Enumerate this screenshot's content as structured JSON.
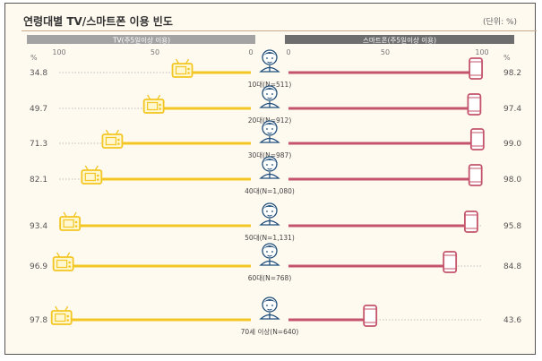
{
  "header": {
    "title": "연령대별 TV/스마트폰 이용 빈도",
    "unit": "(단위: %)"
  },
  "colors": {
    "tv": "#f3c623",
    "smartphone": "#c4546b",
    "tv_header": "#a3a3a3",
    "phone_header": "#6e6e6e",
    "dotted": "#bfbfbf"
  },
  "chart_data": {
    "type": "bar",
    "subtype": "butterfly",
    "categories": [
      "10대(N=511)",
      "20대(N=912)",
      "30대(N=987)",
      "40대(N=1,080)",
      "50대(N=1,131)",
      "60대(N=768)",
      "70세 이상(N=640)"
    ],
    "series": [
      {
        "name": "TV(주5일이상 이용)",
        "side": "left",
        "color": "#f3c623",
        "values": [
          34.8,
          49.7,
          71.3,
          82.1,
          93.4,
          96.9,
          97.8
        ],
        "value_labels": [
          "34.8",
          "49.7",
          "71.3",
          "82.1",
          "93.4",
          "96.9",
          "97.8"
        ]
      },
      {
        "name": "스마트폰(주5일이상 이용)",
        "side": "right",
        "color": "#c4546b",
        "values": [
          98.2,
          97.4,
          99.0,
          98.0,
          95.8,
          84.8,
          43.6
        ],
        "value_labels": [
          "98.2",
          "97.4",
          "99.0",
          "98.0",
          "95.8",
          "84.8",
          "43.6"
        ]
      }
    ],
    "axes": {
      "left": {
        "ticks": [
          "100",
          "50",
          "0"
        ],
        "unit": "%",
        "range": [
          100,
          0
        ]
      },
      "right": {
        "ticks": [
          "0",
          "50",
          "100"
        ],
        "unit": "%",
        "range": [
          0,
          100
        ]
      }
    },
    "legend_placement": "top",
    "grid": false
  }
}
